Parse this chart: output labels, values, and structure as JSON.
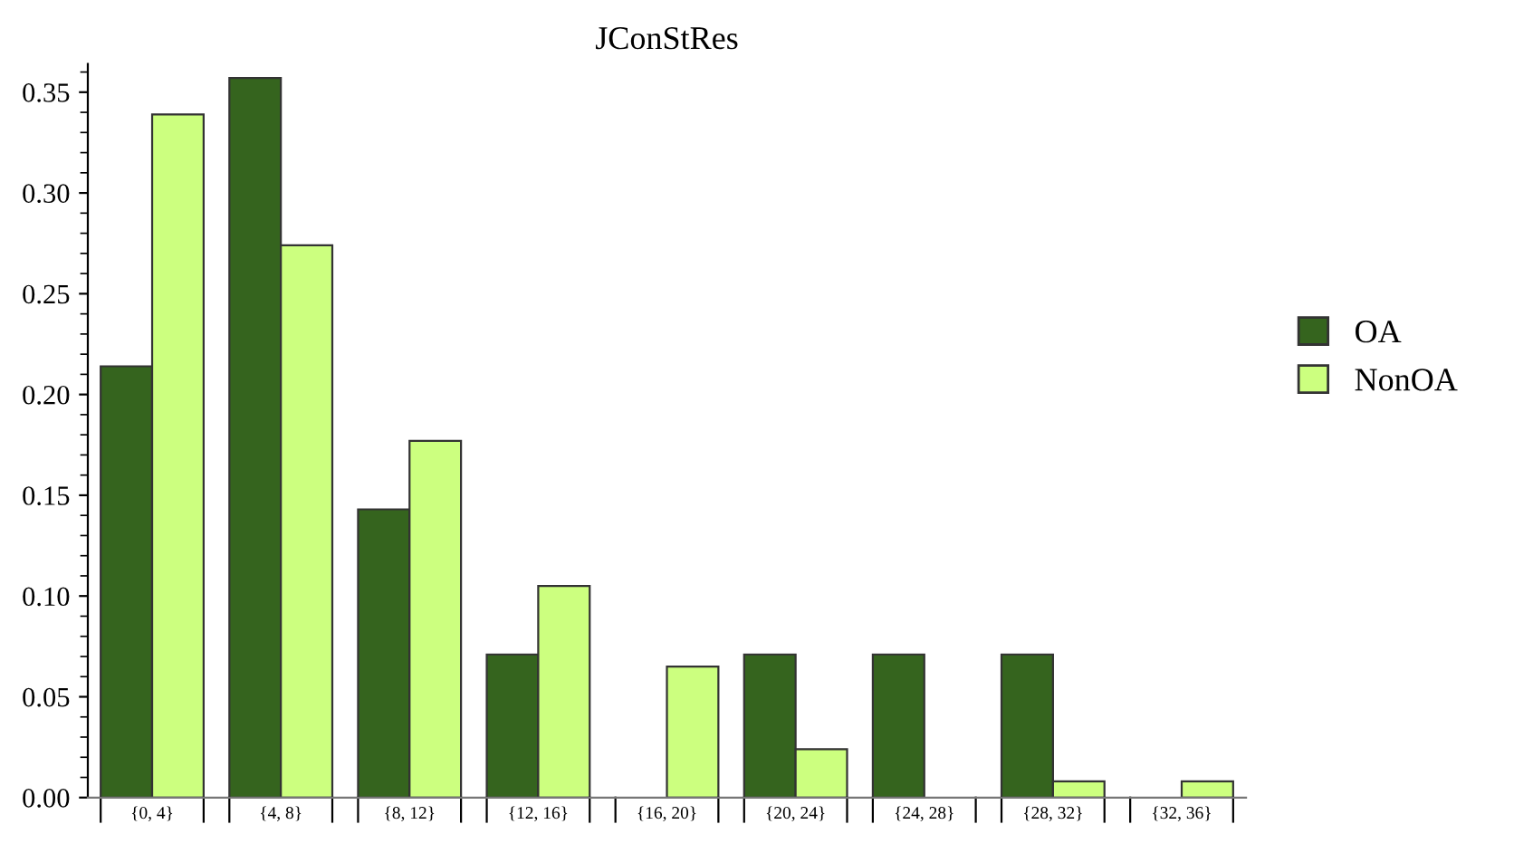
{
  "chart_data": {
    "type": "bar",
    "title": "JConStRes",
    "categories": [
      "{0, 4}",
      "{4, 8}",
      "{8, 12}",
      "{12, 16}",
      "{16, 20}",
      "{20, 24}",
      "{24, 28}",
      "{28, 32}",
      "{32, 36}"
    ],
    "series": [
      {
        "name": "OA",
        "color": "#35641e",
        "values": [
          0.214,
          0.357,
          0.143,
          0.071,
          null,
          0.071,
          0.071,
          0.071,
          null
        ]
      },
      {
        "name": "NonOA",
        "color": "#ccff7f",
        "values": [
          0.339,
          0.274,
          0.177,
          0.105,
          0.065,
          0.024,
          null,
          0.008,
          0.008
        ]
      }
    ],
    "ylim": [
      0,
      0.364
    ],
    "yticks": [
      {
        "value": 0,
        "label": "0.00"
      },
      {
        "value": 0.05,
        "label": "0.05"
      },
      {
        "value": 0.1,
        "label": "0.10"
      },
      {
        "value": 0.15,
        "label": "0.15"
      },
      {
        "value": 0.2,
        "label": "0.20"
      },
      {
        "value": 0.25,
        "label": "0.25"
      },
      {
        "value": 0.3,
        "label": "0.30"
      },
      {
        "value": 0.35,
        "label": "0.35"
      }
    ],
    "grid": false,
    "legend": "right"
  }
}
